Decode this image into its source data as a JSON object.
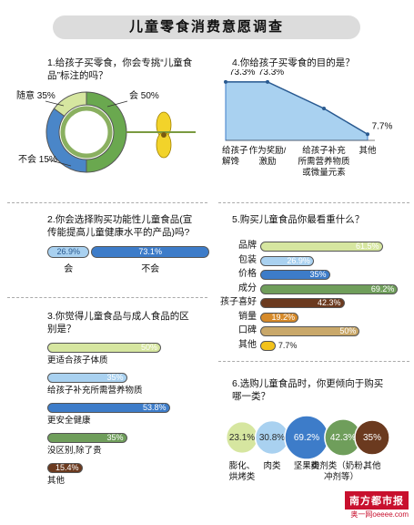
{
  "title": "儿童零食消费意愿调查",
  "q1": {
    "question_line1": "1.给孩子买零食，你会专挑“儿童食",
    "question_line2": "品”标注的吗？",
    "chart_data": {
      "type": "pie",
      "categories": [
        "会",
        "随意",
        "不会"
      ],
      "values": [
        50,
        35,
        15
      ],
      "value_labels": [
        "50%",
        "35%",
        "15%"
      ],
      "colors": [
        "#6aa84f",
        "#4a86c8",
        "#d6e6a0"
      ]
    }
  },
  "q2": {
    "question_line1": "2.你会选择购买功能性儿童食品(宣",
    "question_line2": "传能提高儿童健康水平的产品)吗?",
    "chart_data": {
      "type": "bar",
      "categories": [
        "会",
        "不会"
      ],
      "values": [
        26.9,
        73.1
      ],
      "value_labels": [
        "26.9%",
        "73.1%"
      ],
      "colors": [
        "#a9d1f0",
        "#3d7cc9"
      ]
    }
  },
  "q3": {
    "question_line1": "3.你觉得儿童食品与成人食品的区",
    "question_line2": "别是？",
    "chart_data": {
      "type": "bar",
      "categories": [
        "更适合孩子体质",
        "给孩子补充所需营养物质",
        "更安全健康",
        "没区别,除了贵",
        "其他"
      ],
      "values": [
        50,
        35,
        53.8,
        35,
        15.4
      ],
      "value_labels": [
        "50%",
        "35%",
        "53.8%",
        "35%",
        "15.4%"
      ],
      "colors": [
        "#d6e6a0",
        "#a9d1f0",
        "#3d7cc9",
        "#6f9e5b",
        "#6b3a1f"
      ]
    }
  },
  "q4": {
    "question": "4.你给孩子买零食的目的是？",
    "chart_data": {
      "type": "area",
      "categories": [
        "给孩子解馋",
        "作为奖励/激励",
        "给孩子补充所需营养物质或微量元素",
        "其他"
      ],
      "category_lines": [
        [
          "给孩子",
          "解馋"
        ],
        [
          "作为奖励/",
          "激励"
        ],
        [
          "给孩子补充",
          "所需营养物质",
          "或微量元素"
        ],
        [
          "其他"
        ]
      ],
      "values": [
        73.3,
        73.3,
        40,
        7.7
      ],
      "value_labels": [
        "73.3%",
        "73.3%",
        "",
        "7.7%"
      ],
      "color": "#a9d1f0"
    }
  },
  "q5": {
    "question": "5.购买儿童食品你最看重什么？",
    "chart_data": {
      "type": "bar",
      "categories": [
        "品牌",
        "包装",
        "价格",
        "成分",
        "孩子喜好",
        "销量",
        "口碑",
        "其他"
      ],
      "values": [
        61.5,
        26.9,
        35,
        69.2,
        42.3,
        19.2,
        50,
        7.7
      ],
      "value_labels": [
        "61.5%",
        "26.9%",
        "35%",
        "69.2%",
        "42.3%",
        "19.2%",
        "50%",
        "7.7%"
      ],
      "colors": [
        "#d6e6a0",
        "#a9d1f0",
        "#3d7cc9",
        "#6f9e5b",
        "#6b3a1f",
        "#d68a2a",
        "#c9a86a",
        "#f2c21b"
      ]
    }
  },
  "q6": {
    "question_line1": "6.选购儿童食品时，你更倾向于购买",
    "question_line2": "哪一类？",
    "chart_data": {
      "type": "scatter",
      "categories": [
        "膨化、烘烤类",
        "肉类",
        "坚果类",
        "粉剂类（奶粉、冲剂等）",
        "其他"
      ],
      "category_lines": [
        [
          "膨化、",
          "烘烤类"
        ],
        [
          "肉类"
        ],
        [
          "坚果类"
        ],
        [
          "粉剂类（奶粉、",
          "冲剂等）"
        ],
        [
          "其他"
        ]
      ],
      "values": [
        23.1,
        30.8,
        69.2,
        42.3,
        35
      ],
      "value_labels": [
        "23.1%",
        "30.8%",
        "69.2%",
        "42.3%",
        "35%"
      ],
      "colors": [
        "#d6e6a0",
        "#a9d1f0",
        "#3d7cc9",
        "#6f9e5b",
        "#6b3a1f"
      ]
    }
  },
  "logo": {
    "main": "南方都市报",
    "sub": "奥一网oeeee.com"
  }
}
